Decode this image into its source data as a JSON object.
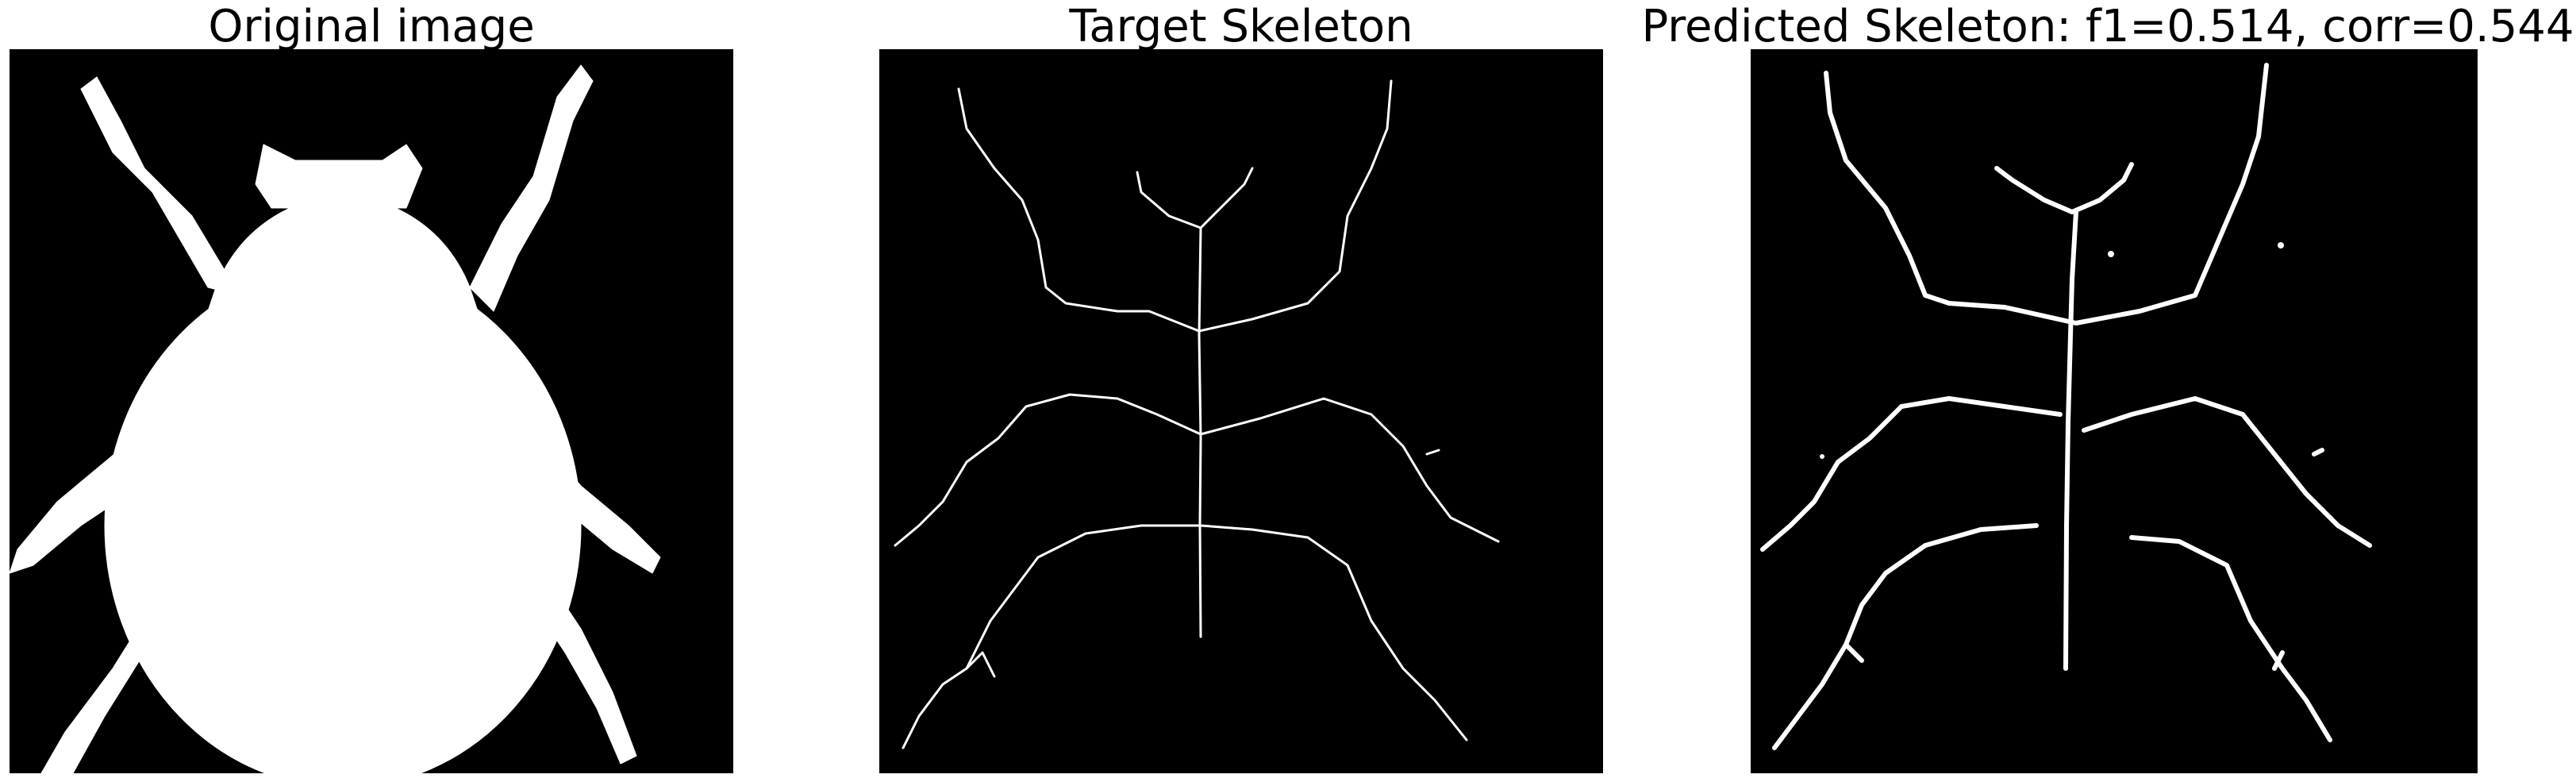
{
  "panels": {
    "original": {
      "title": "Original image"
    },
    "target": {
      "title": "Target Skeleton"
    },
    "predicted": {
      "title": "Predicted Skeleton: f1=0.514, corr=0.544"
    }
  },
  "colors": {
    "background": "#000000",
    "foreground": "#ffffff"
  }
}
